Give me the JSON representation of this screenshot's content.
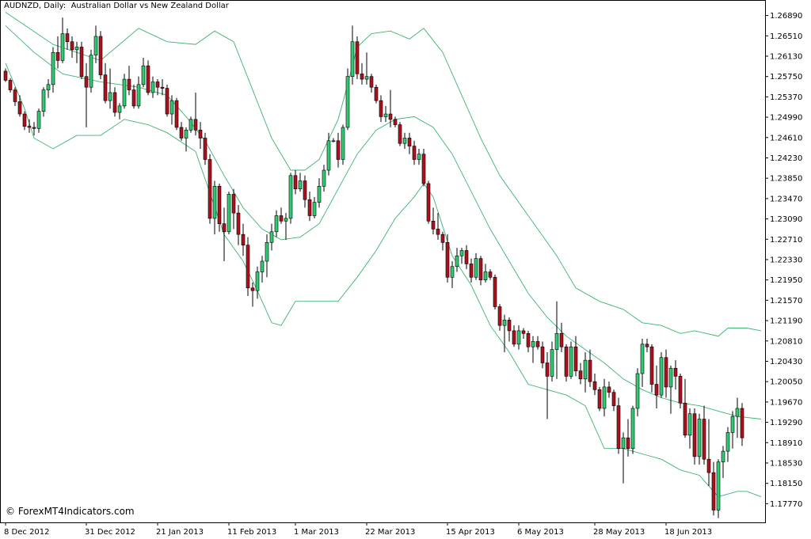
{
  "window": {
    "symbol": "AUDNZD, Daily:",
    "description": "Australian Dollar vs New Zealand Dollar"
  },
  "watermark": "© ForexMT4Indicators.com",
  "colors": {
    "bull": "#2ecc71",
    "bear": "#b0101c",
    "wick": "#000000",
    "bands": "#3cb371",
    "frame": "#000000",
    "background": "#ffffff"
  },
  "chart_data": {
    "type": "candlestick",
    "indicator": "Bollinger Bands",
    "ylim": [
      1.1745,
      1.2715
    ],
    "y_ticks": [
      "1.26890",
      "1.26510",
      "1.26130",
      "1.25750",
      "1.25370",
      "1.24990",
      "1.24610",
      "1.24230",
      "1.23850",
      "1.23470",
      "1.23090",
      "1.22710",
      "1.22330",
      "1.21950",
      "1.21570",
      "1.21190",
      "1.20810",
      "1.20430",
      "1.20050",
      "1.19670",
      "1.19290",
      "1.18910",
      "1.18530",
      "1.18150",
      "1.17770"
    ],
    "x_labels": [
      {
        "label": "8 Dec 2012",
        "index": 0
      },
      {
        "label": "31 Dec 2012",
        "index": 17
      },
      {
        "label": "21 Jan 2013",
        "index": 32
      },
      {
        "label": "11 Feb 2013",
        "index": 47
      },
      {
        "label": "1 Mar 2013",
        "index": 61
      },
      {
        "label": "22 Mar 2013",
        "index": 76
      },
      {
        "label": "15 Apr 2013",
        "index": 93
      },
      {
        "label": "6 May 2013",
        "index": 108
      },
      {
        "label": "28 May 2013",
        "index": 124
      },
      {
        "label": "18 Jun 2013",
        "index": 139
      }
    ],
    "candles": [
      [
        1.2585,
        1.259,
        1.2565,
        1.2568
      ],
      [
        1.2568,
        1.2572,
        1.2545,
        1.255
      ],
      [
        1.255,
        1.2555,
        1.252,
        1.2528
      ],
      [
        1.2528,
        1.254,
        1.25,
        1.2505
      ],
      [
        1.2505,
        1.251,
        1.2475,
        1.2482
      ],
      [
        1.2482,
        1.2495,
        1.247,
        1.248
      ],
      [
        1.248,
        1.249,
        1.2465,
        1.2478
      ],
      [
        1.2478,
        1.2515,
        1.247,
        1.251
      ],
      [
        1.251,
        1.2555,
        1.25,
        1.255
      ],
      [
        1.255,
        1.257,
        1.2535,
        1.256
      ],
      [
        1.256,
        1.263,
        1.2545,
        1.262
      ],
      [
        1.262,
        1.265,
        1.259,
        1.2605
      ],
      [
        1.2605,
        1.2685,
        1.26,
        1.2655
      ],
      [
        1.2655,
        1.2665,
        1.2625,
        1.264
      ],
      [
        1.264,
        1.265,
        1.261,
        1.2625
      ],
      [
        1.2625,
        1.264,
        1.26,
        1.263
      ],
      [
        1.263,
        1.264,
        1.257,
        1.2575
      ],
      [
        1.2575,
        1.26,
        1.248,
        1.2555
      ],
      [
        1.2555,
        1.2625,
        1.2545,
        1.2615
      ],
      [
        1.2615,
        1.267,
        1.26,
        1.265
      ],
      [
        1.265,
        1.266,
        1.257,
        1.2578
      ],
      [
        1.2578,
        1.26,
        1.2525,
        1.253
      ],
      [
        1.253,
        1.259,
        1.2515,
        1.2545
      ],
      [
        1.2545,
        1.2555,
        1.25,
        1.2508
      ],
      [
        1.2508,
        1.2525,
        1.2495,
        1.252
      ],
      [
        1.252,
        1.258,
        1.2515,
        1.257
      ],
      [
        1.257,
        1.2595,
        1.254,
        1.255
      ],
      [
        1.255,
        1.256,
        1.2515,
        1.252
      ],
      [
        1.252,
        1.2575,
        1.2515,
        1.256
      ],
      [
        1.256,
        1.261,
        1.2555,
        1.2595
      ],
      [
        1.2595,
        1.2605,
        1.254,
        1.2545
      ],
      [
        1.2545,
        1.2575,
        1.2535,
        1.2565
      ],
      [
        1.2565,
        1.257,
        1.254,
        1.2555
      ],
      [
        1.2555,
        1.257,
        1.254,
        1.2553
      ],
      [
        1.2553,
        1.256,
        1.25,
        1.2505
      ],
      [
        1.2505,
        1.254,
        1.2485,
        1.253
      ],
      [
        1.253,
        1.2535,
        1.2475,
        1.248
      ],
      [
        1.248,
        1.249,
        1.2455,
        1.246
      ],
      [
        1.246,
        1.248,
        1.2435,
        1.2475
      ],
      [
        1.2475,
        1.25,
        1.247,
        1.2495
      ],
      [
        1.2495,
        1.2545,
        1.2465,
        1.2475
      ],
      [
        1.2475,
        1.249,
        1.244,
        1.246
      ],
      [
        1.246,
        1.247,
        1.241,
        1.242
      ],
      [
        1.242,
        1.243,
        1.23,
        1.231
      ],
      [
        1.231,
        1.238,
        1.228,
        1.237
      ],
      [
        1.237,
        1.2375,
        1.2285,
        1.23
      ],
      [
        1.23,
        1.233,
        1.223,
        1.2285
      ],
      [
        1.2285,
        1.236,
        1.228,
        1.2355
      ],
      [
        1.2355,
        1.2365,
        1.229,
        1.232
      ],
      [
        1.232,
        1.2335,
        1.226,
        1.228
      ],
      [
        1.228,
        1.23,
        1.224,
        1.226
      ],
      [
        1.226,
        1.2275,
        1.2165,
        1.218
      ],
      [
        1.218,
        1.219,
        1.2145,
        1.2175
      ],
      [
        1.2175,
        1.222,
        1.216,
        1.221
      ],
      [
        1.221,
        1.224,
        1.219,
        1.223
      ],
      [
        1.223,
        1.228,
        1.22,
        1.2265
      ],
      [
        1.2265,
        1.23,
        1.225,
        1.2285
      ],
      [
        1.2285,
        1.2325,
        1.2275,
        1.2315
      ],
      [
        1.2315,
        1.233,
        1.23,
        1.2305
      ],
      [
        1.2305,
        1.232,
        1.227,
        1.231
      ],
      [
        1.231,
        1.2395,
        1.23,
        1.239
      ],
      [
        1.239,
        1.24,
        1.2355,
        1.2365
      ],
      [
        1.2365,
        1.2395,
        1.236,
        1.238
      ],
      [
        1.238,
        1.239,
        1.233,
        1.2345
      ],
      [
        1.2345,
        1.236,
        1.2305,
        1.2315
      ],
      [
        1.2315,
        1.235,
        1.231,
        1.234
      ],
      [
        1.234,
        1.2385,
        1.233,
        1.237
      ],
      [
        1.237,
        1.241,
        1.236,
        1.24
      ],
      [
        1.24,
        1.247,
        1.239,
        1.2455
      ],
      [
        1.2455,
        1.246,
        1.2452,
        1.2455
      ],
      [
        1.2455,
        1.247,
        1.2405,
        1.242
      ],
      [
        1.242,
        1.2485,
        1.241,
        1.248
      ],
      [
        1.248,
        1.259,
        1.2475,
        1.2575
      ],
      [
        1.2575,
        1.267,
        1.256,
        1.264
      ],
      [
        1.264,
        1.265,
        1.257,
        1.258
      ],
      [
        1.258,
        1.26,
        1.256,
        1.257
      ],
      [
        1.257,
        1.262,
        1.256,
        1.2575
      ],
      [
        1.2575,
        1.258,
        1.2545,
        1.2555
      ],
      [
        1.2555,
        1.256,
        1.2525,
        1.253
      ],
      [
        1.253,
        1.254,
        1.249,
        1.25
      ],
      [
        1.25,
        1.252,
        1.249,
        1.2505
      ],
      [
        1.2505,
        1.255,
        1.248,
        1.2495
      ],
      [
        1.2495,
        1.25,
        1.248,
        1.2485
      ],
      [
        1.2485,
        1.249,
        1.2445,
        1.245
      ],
      [
        1.245,
        1.247,
        1.244,
        1.246
      ],
      [
        1.246,
        1.247,
        1.243,
        1.2445
      ],
      [
        1.2445,
        1.2455,
        1.241,
        1.242
      ],
      [
        1.242,
        1.244,
        1.241,
        1.243
      ],
      [
        1.243,
        1.244,
        1.237,
        1.2375
      ],
      [
        1.2375,
        1.238,
        1.23,
        1.2305
      ],
      [
        1.2305,
        1.233,
        1.228,
        1.229
      ],
      [
        1.229,
        1.232,
        1.227,
        1.228
      ],
      [
        1.228,
        1.2285,
        1.225,
        1.2265
      ],
      [
        1.2265,
        1.228,
        1.219,
        1.22
      ],
      [
        1.22,
        1.223,
        1.218,
        1.222
      ],
      [
        1.222,
        1.2255,
        1.221,
        1.224
      ],
      [
        1.224,
        1.2255,
        1.2225,
        1.225
      ],
      [
        1.225,
        1.226,
        1.2215,
        1.2225
      ],
      [
        1.2225,
        1.2235,
        1.219,
        1.22
      ],
      [
        1.22,
        1.2245,
        1.2195,
        1.2235
      ],
      [
        1.2235,
        1.224,
        1.2185,
        1.2195
      ],
      [
        1.2195,
        1.2225,
        1.219,
        1.221
      ],
      [
        1.221,
        1.2215,
        1.2195,
        1.22
      ],
      [
        1.22,
        1.2205,
        1.214,
        1.2145
      ],
      [
        1.2145,
        1.215,
        1.21,
        1.211
      ],
      [
        1.211,
        1.213,
        1.206,
        1.212
      ],
      [
        1.212,
        1.2125,
        1.208,
        1.21
      ],
      [
        1.21,
        1.211,
        1.207,
        1.2075
      ],
      [
        1.2075,
        1.211,
        1.2065,
        1.21
      ],
      [
        1.21,
        1.2105,
        1.2085,
        1.2095
      ],
      [
        1.2095,
        1.21,
        1.206,
        1.207
      ],
      [
        1.207,
        1.209,
        1.204,
        1.208
      ],
      [
        1.208,
        1.209,
        1.2065,
        1.207
      ],
      [
        1.207,
        1.208,
        1.203,
        1.204
      ],
      [
        1.204,
        1.206,
        1.1935,
        1.2015
      ],
      [
        1.2015,
        1.208,
        1.2005,
        1.2065
      ],
      [
        1.2065,
        1.2155,
        1.201,
        1.2095
      ],
      [
        1.2095,
        1.2115,
        1.206,
        1.207
      ],
      [
        1.207,
        1.2075,
        1.2005,
        1.2015
      ],
      [
        1.2015,
        1.208,
        1.201,
        1.207
      ],
      [
        1.207,
        1.209,
        1.2015,
        1.2025
      ],
      [
        1.2025,
        1.204,
        1.2,
        1.201
      ],
      [
        1.201,
        1.206,
        1.1985,
        1.2045
      ],
      [
        1.2045,
        1.2065,
        1.1995,
        1.2005
      ],
      [
        1.2005,
        1.202,
        1.198,
        1.199
      ],
      [
        1.199,
        1.1995,
        1.195,
        1.1955
      ],
      [
        1.1955,
        1.201,
        1.194,
        1.1995
      ],
      [
        1.1995,
        1.2005,
        1.1975,
        1.1985
      ],
      [
        1.1985,
        1.199,
        1.195,
        1.196
      ],
      [
        1.196,
        1.1975,
        1.187,
        1.188
      ],
      [
        1.188,
        1.191,
        1.1815,
        1.19
      ],
      [
        1.19,
        1.1935,
        1.1865,
        1.188
      ],
      [
        1.188,
        1.196,
        1.187,
        1.1955
      ],
      [
        1.1955,
        1.203,
        1.194,
        1.202
      ],
      [
        1.202,
        1.2085,
        1.1995,
        1.2075
      ],
      [
        1.2075,
        1.2085,
        1.206,
        1.207
      ],
      [
        1.207,
        1.2075,
        1.1985,
        1.2
      ],
      [
        1.2,
        1.2035,
        1.1955,
        1.198
      ],
      [
        1.198,
        1.206,
        1.1975,
        1.205
      ],
      [
        1.205,
        1.2065,
        1.1975,
        1.1995
      ],
      [
        1.1995,
        1.2035,
        1.1945,
        1.203
      ],
      [
        1.203,
        1.2045,
        1.199,
        1.2015
      ],
      [
        1.2015,
        1.202,
        1.1955,
        1.1965
      ],
      [
        1.1965,
        1.201,
        1.19,
        1.1905
      ],
      [
        1.1905,
        1.1955,
        1.188,
        1.1945
      ],
      [
        1.1945,
        1.1955,
        1.185,
        1.1865
      ],
      [
        1.1865,
        1.1945,
        1.185,
        1.1935
      ],
      [
        1.1935,
        1.196,
        1.185,
        1.186
      ],
      [
        1.186,
        1.1935,
        1.181,
        1.1835
      ],
      [
        1.1835,
        1.1855,
        1.1755,
        1.1765
      ],
      [
        1.1765,
        1.186,
        1.175,
        1.1855
      ],
      [
        1.1855,
        1.1885,
        1.1825,
        1.1875
      ],
      [
        1.1875,
        1.192,
        1.1855,
        1.191
      ],
      [
        1.191,
        1.195,
        1.188,
        1.194
      ],
      [
        1.194,
        1.1975,
        1.19,
        1.1955
      ],
      [
        1.1955,
        1.1965,
        1.1885,
        1.19
      ]
    ],
    "bands": {
      "upper": [
        [
          0,
          1.2695
        ],
        [
          10,
          1.2635
        ],
        [
          20,
          1.2605
        ],
        [
          28,
          1.2665
        ],
        [
          34,
          1.264
        ],
        [
          40,
          1.2635
        ],
        [
          44,
          1.266
        ],
        [
          48,
          1.264
        ],
        [
          52,
          1.255
        ],
        [
          56,
          1.246
        ],
        [
          60,
          1.24
        ],
        [
          63,
          1.24
        ],
        [
          66,
          1.242
        ],
        [
          70,
          1.2495
        ],
        [
          72,
          1.256
        ],
        [
          74,
          1.263
        ],
        [
          77,
          1.2655
        ],
        [
          81,
          1.266
        ],
        [
          85,
          1.2645
        ],
        [
          88,
          1.2665
        ],
        [
          92,
          1.262
        ],
        [
          96,
          1.254
        ],
        [
          100,
          1.246
        ],
        [
          104,
          1.239
        ],
        [
          108,
          1.234
        ],
        [
          112,
          1.229
        ],
        [
          116,
          1.224
        ],
        [
          120,
          1.218
        ],
        [
          125,
          1.2155
        ],
        [
          130,
          1.214
        ],
        [
          134,
          1.2115
        ],
        [
          138,
          1.211
        ],
        [
          142,
          1.2095
        ],
        [
          145,
          1.21
        ],
        [
          150,
          1.209
        ],
        [
          152,
          1.2105
        ],
        [
          156,
          1.2105
        ],
        [
          159,
          1.21
        ]
      ],
      "middle": [
        [
          0,
          1.267
        ],
        [
          6,
          1.262
        ],
        [
          12,
          1.258
        ],
        [
          20,
          1.2565
        ],
        [
          28,
          1.2555
        ],
        [
          34,
          1.254
        ],
        [
          38,
          1.25
        ],
        [
          42,
          1.2455
        ],
        [
          46,
          1.239
        ],
        [
          50,
          1.233
        ],
        [
          54,
          1.229
        ],
        [
          58,
          1.227
        ],
        [
          62,
          1.2275
        ],
        [
          66,
          1.23
        ],
        [
          70,
          1.2365
        ],
        [
          74,
          1.243
        ],
        [
          78,
          1.2475
        ],
        [
          82,
          1.2495
        ],
        [
          86,
          1.25
        ],
        [
          90,
          1.248
        ],
        [
          94,
          1.243
        ],
        [
          98,
          1.236
        ],
        [
          102,
          1.229
        ],
        [
          106,
          1.223
        ],
        [
          110,
          1.217
        ],
        [
          114,
          1.2125
        ],
        [
          118,
          1.209
        ],
        [
          122,
          1.2065
        ],
        [
          126,
          1.204
        ],
        [
          130,
          1.201
        ],
        [
          134,
          1.199
        ],
        [
          138,
          1.1975
        ],
        [
          142,
          1.1965
        ],
        [
          146,
          1.196
        ],
        [
          150,
          1.195
        ],
        [
          154,
          1.194
        ],
        [
          159,
          1.1935
        ]
      ],
      "lower": [
        [
          0,
          1.26
        ],
        [
          4,
          1.2515
        ],
        [
          6,
          1.246
        ],
        [
          10,
          1.244
        ],
        [
          15,
          1.2465
        ],
        [
          20,
          1.2465
        ],
        [
          25,
          1.2495
        ],
        [
          30,
          1.2485
        ],
        [
          34,
          1.247
        ],
        [
          40,
          1.2435
        ],
        [
          46,
          1.228
        ],
        [
          50,
          1.223
        ],
        [
          53,
          1.2175
        ],
        [
          56,
          1.2115
        ],
        [
          58,
          1.211
        ],
        [
          61,
          1.2155
        ],
        [
          66,
          1.2155
        ],
        [
          70,
          1.2155
        ],
        [
          74,
          1.22
        ],
        [
          78,
          1.225
        ],
        [
          82,
          1.231
        ],
        [
          86,
          1.235
        ],
        [
          88,
          1.2375
        ],
        [
          90,
          1.235
        ],
        [
          94,
          1.224
        ],
        [
          98,
          1.2185
        ],
        [
          102,
          1.211
        ],
        [
          106,
          1.206
        ],
        [
          110,
          1.2
        ],
        [
          114,
          1.199
        ],
        [
          118,
          1.198
        ],
        [
          122,
          1.196
        ],
        [
          126,
          1.188
        ],
        [
          130,
          1.188
        ],
        [
          134,
          1.187
        ],
        [
          138,
          1.186
        ],
        [
          142,
          1.184
        ],
        [
          146,
          1.183
        ],
        [
          150,
          1.179
        ],
        [
          154,
          1.18
        ],
        [
          156,
          1.18
        ],
        [
          159,
          1.179
        ]
      ]
    }
  }
}
